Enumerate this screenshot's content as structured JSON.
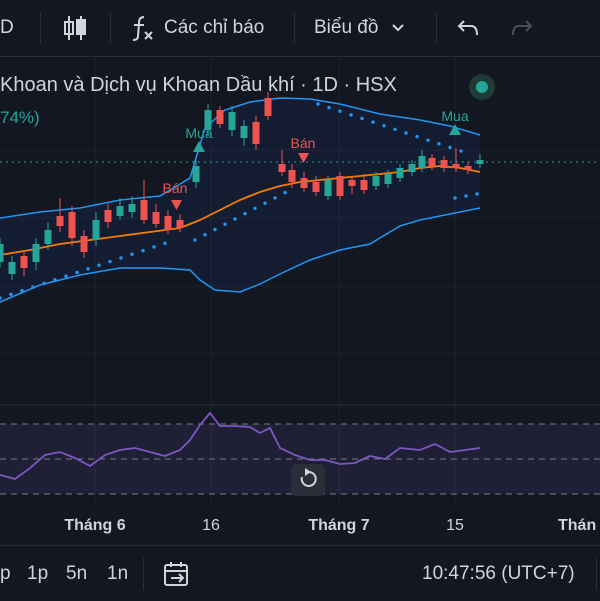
{
  "toolbar": {
    "timeframe_partial": "D",
    "indicators_label": "Các chỉ báo",
    "chart_type_label": "Biểu đồ"
  },
  "legend": {
    "title": "Khoan và Dịch vụ Khoan Dầu khí · 1D · HSX",
    "change": "74%)"
  },
  "signals": {
    "buy_label": "Mua",
    "sell_label": "Bán"
  },
  "xaxis": {
    "labels": [
      "Tháng 6",
      "16",
      "Tháng 7",
      "15",
      "Thán"
    ]
  },
  "bottom_bar": {
    "ranges": [
      "p",
      "1p",
      "5n",
      "1n"
    ],
    "time": "10:47:56 (UTC+7)"
  },
  "colors": {
    "up": "#26a69a",
    "down": "#ef5350",
    "bollinger": "#2962ff",
    "ma": "#f57c00",
    "rsi": "#7e57c2",
    "sar": "#2196f3"
  }
}
